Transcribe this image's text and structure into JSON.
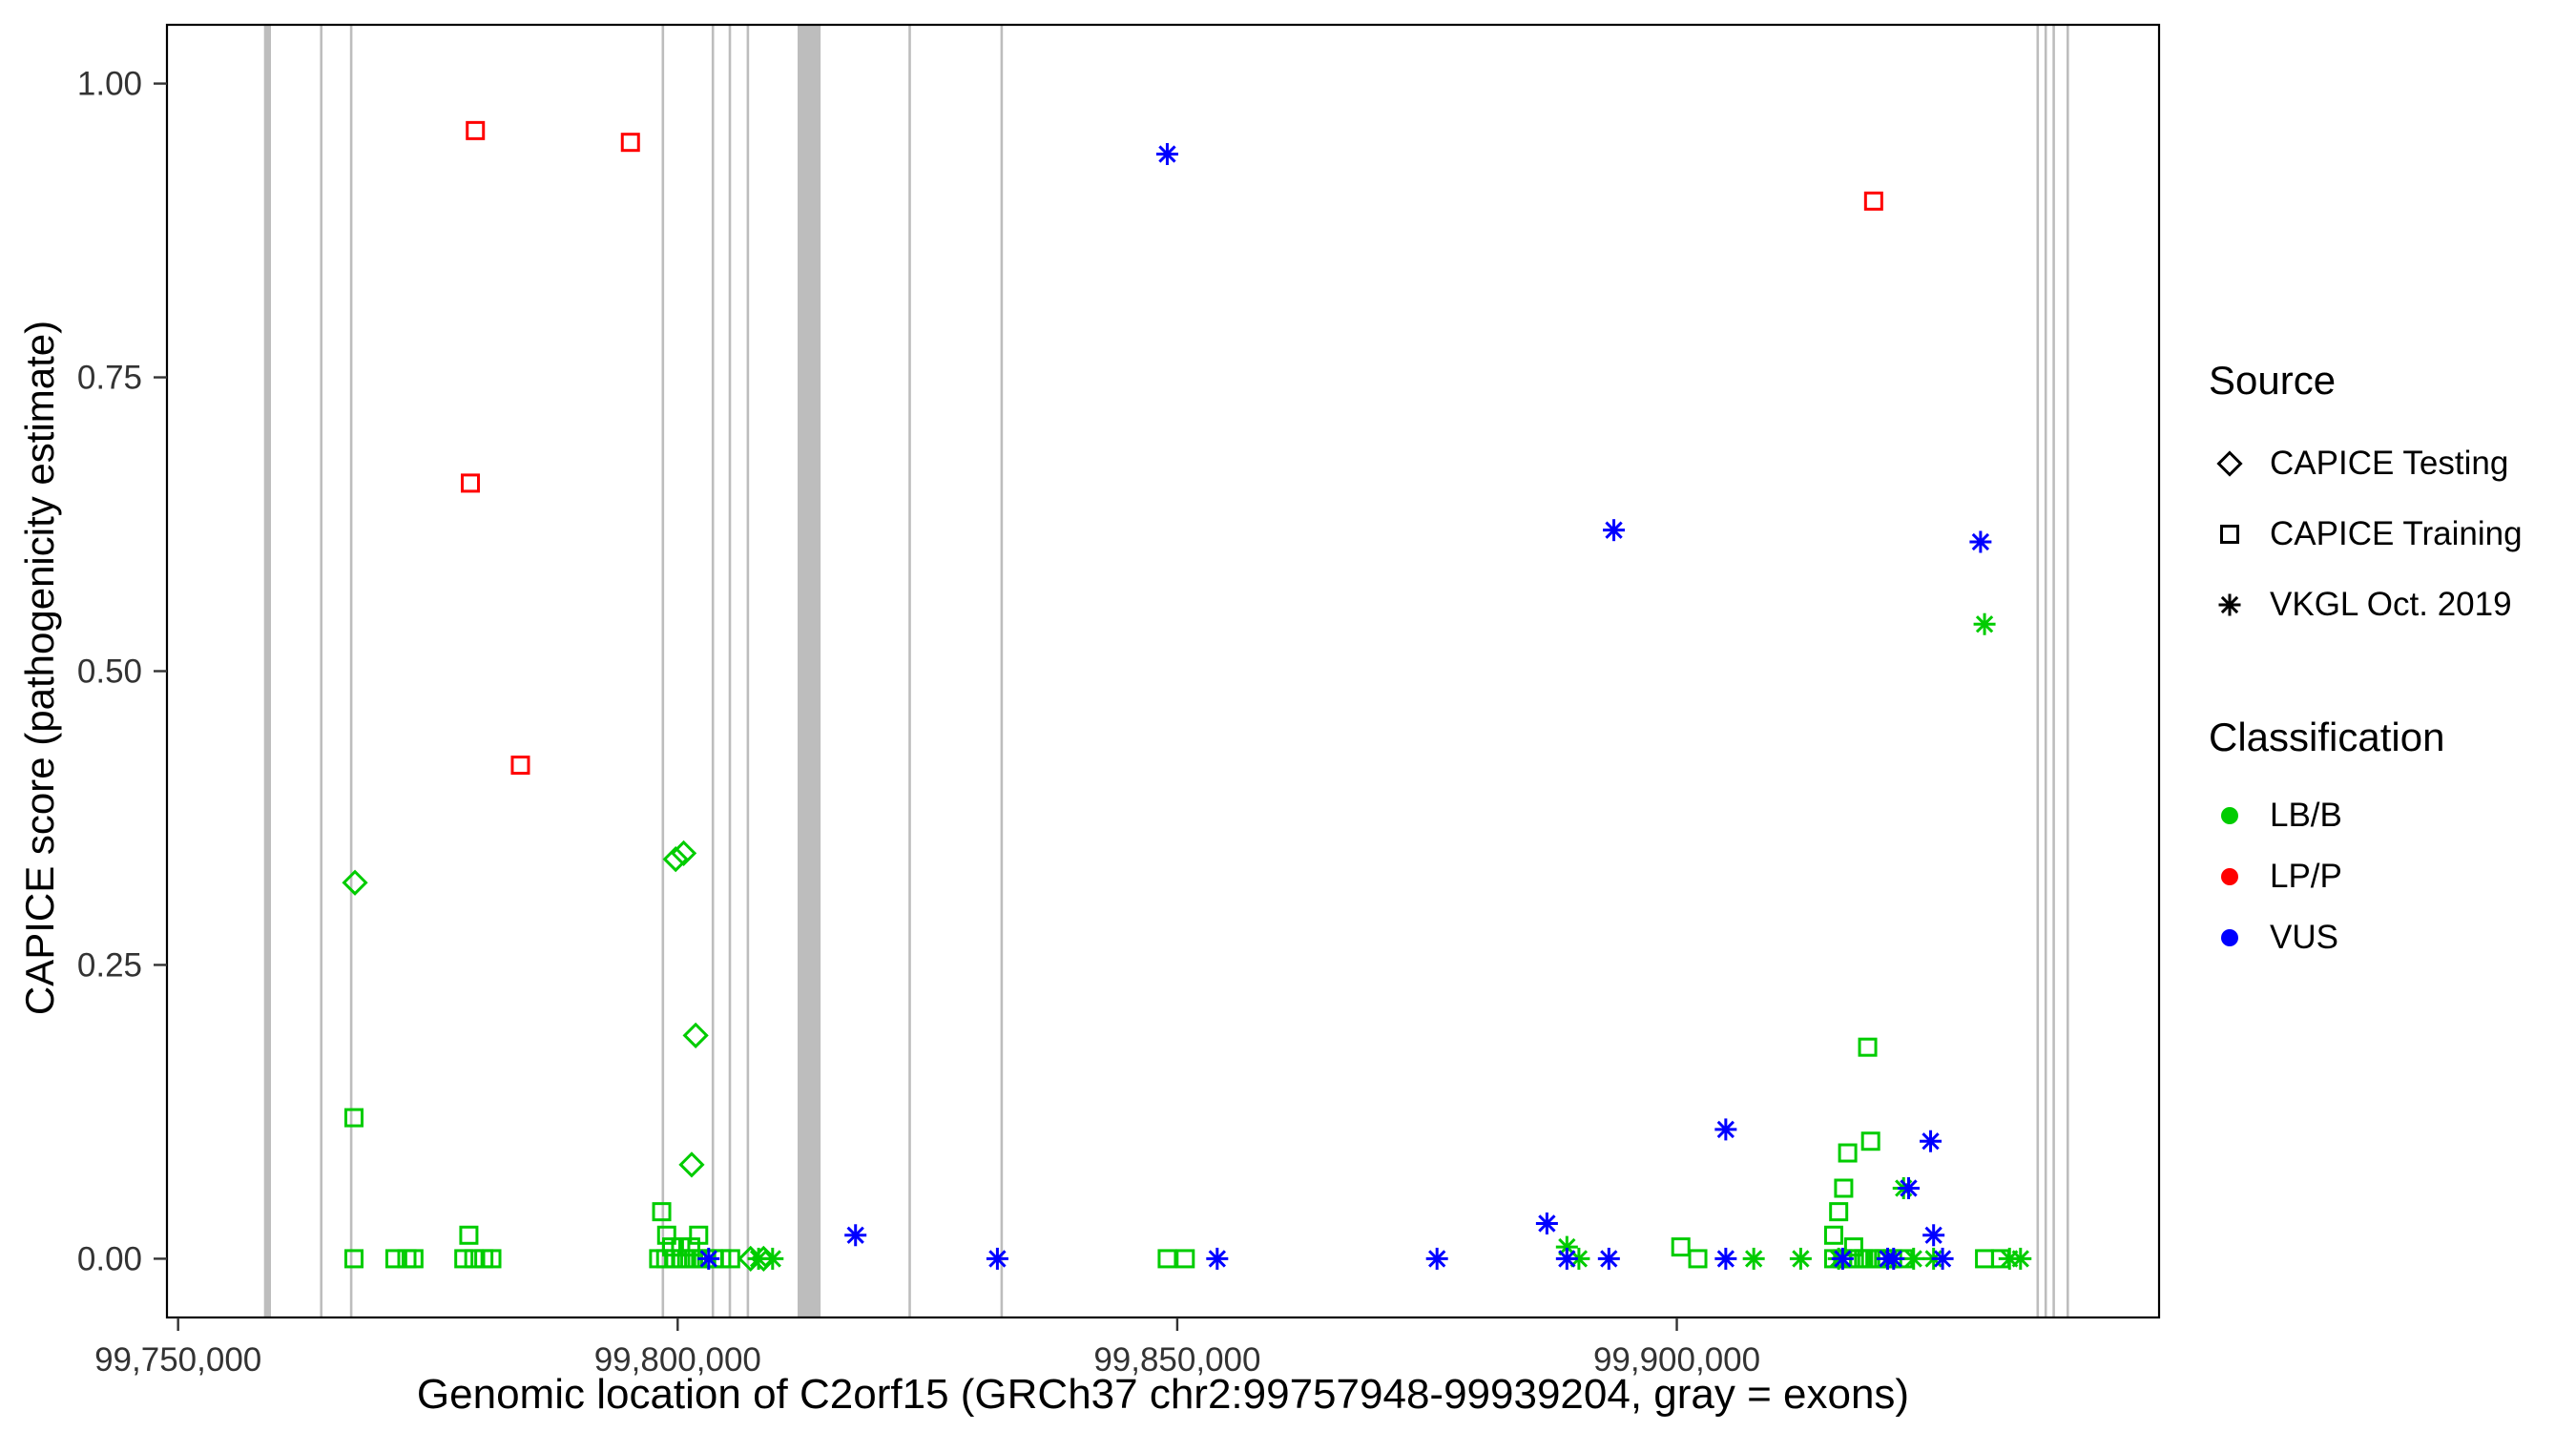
{
  "chart_data": {
    "type": "scatter",
    "title": "",
    "xlabel": "Genomic location of C2orf15 (GRCh37 chr2:99757948-99939204, gray = exons)",
    "ylabel": "CAPICE score (pathogenicity estimate)",
    "x_domain": [
      99748885,
      99948267
    ],
    "y_domain": [
      -0.05,
      1.05
    ],
    "x_ticks": {
      "values": [
        99750000,
        99800000,
        99850000,
        99900000
      ],
      "labels": [
        "99,750,000",
        "99,800,000",
        "99,850,000",
        "99,900,000"
      ]
    },
    "y_ticks": {
      "values": [
        0.0,
        0.25,
        0.5,
        0.75,
        1.0
      ],
      "labels": [
        "0.00",
        "0.25",
        "0.50",
        "0.75",
        "1.00"
      ]
    },
    "grid": false,
    "exon_color": "#bdbdbd",
    "exons": [
      [
        99758600,
        99759300
      ],
      [
        99764200,
        99764450
      ],
      [
        99767200,
        99767450
      ],
      [
        99798400,
        99798650
      ],
      [
        99803400,
        99803650
      ],
      [
        99805100,
        99805350
      ],
      [
        99806900,
        99807150
      ],
      [
        99812000,
        99814300
      ],
      [
        99823100,
        99823350
      ],
      [
        99832300,
        99832550
      ],
      [
        99936000,
        99936250
      ],
      [
        99936800,
        99937050
      ],
      [
        99937600,
        99937850
      ],
      [
        99939000,
        99939204
      ]
    ],
    "colors": {
      "LB/B": "#00cc00",
      "LP/P": "#ff0000",
      "VUS": "#0000ff"
    },
    "markers": {
      "CAPICE Testing": "diamond",
      "CAPICE Training": "square",
      "VKGL Oct. 2019": "asterisk"
    },
    "series": [
      {
        "name": "CAPICE Testing / LB/B",
        "source": "CAPICE Testing",
        "classification": "LB/B",
        "points": [
          [
            99767700,
            0.32
          ],
          [
            99799800,
            0.34
          ],
          [
            99800600,
            0.345
          ],
          [
            99801800,
            0.19
          ],
          [
            99801400,
            0.08
          ],
          [
            99807300,
            0.0
          ],
          [
            99808600,
            0.0
          ]
        ]
      },
      {
        "name": "CAPICE Training / LB/B",
        "source": "CAPICE Training",
        "classification": "LB/B",
        "points": [
          [
            99767600,
            0.12
          ],
          [
            99767600,
            0.0
          ],
          [
            99771700,
            0.0
          ],
          [
            99772900,
            0.0
          ],
          [
            99773600,
            0.0
          ],
          [
            99779100,
            0.02
          ],
          [
            99778600,
            0.0
          ],
          [
            99779600,
            0.0
          ],
          [
            99780600,
            0.0
          ],
          [
            99781400,
            0.0
          ],
          [
            99798400,
            0.04
          ],
          [
            99798900,
            0.02
          ],
          [
            99799400,
            0.01
          ],
          [
            99798100,
            0.0
          ],
          [
            99798800,
            0.0
          ],
          [
            99799600,
            0.0
          ],
          [
            99800300,
            0.01
          ],
          [
            99800300,
            0.0
          ],
          [
            99800900,
            0.0
          ],
          [
            99801300,
            0.01
          ],
          [
            99801600,
            0.0
          ],
          [
            99802100,
            0.02
          ],
          [
            99802300,
            0.0
          ],
          [
            99802900,
            0.0
          ],
          [
            99803600,
            0.0
          ],
          [
            99804400,
            0.0
          ],
          [
            99805300,
            0.0
          ],
          [
            99849000,
            0.0
          ],
          [
            99850800,
            0.0
          ],
          [
            99900400,
            0.01
          ],
          [
            99902100,
            0.0
          ],
          [
            99915700,
            0.02
          ],
          [
            99916200,
            0.04
          ],
          [
            99916700,
            0.06
          ],
          [
            99917100,
            0.09
          ],
          [
            99919100,
            0.18
          ],
          [
            99919400,
            0.1
          ],
          [
            99915700,
            0.0
          ],
          [
            99916600,
            0.0
          ],
          [
            99917400,
            0.0
          ],
          [
            99917700,
            0.01
          ],
          [
            99918200,
            0.0
          ],
          [
            99918700,
            0.0
          ],
          [
            99919400,
            0.0
          ],
          [
            99920100,
            0.0
          ],
          [
            99920700,
            0.0
          ],
          [
            99921600,
            0.0
          ],
          [
            99922700,
            0.0
          ],
          [
            99930800,
            0.0
          ],
          [
            99932400,
            0.0
          ]
        ]
      },
      {
        "name": "CAPICE Training / LP/P",
        "source": "CAPICE Training",
        "classification": "LP/P",
        "points": [
          [
            99779750,
            0.96
          ],
          [
            99779250,
            0.66
          ],
          [
            99784260,
            0.42
          ],
          [
            99795270,
            0.95
          ],
          [
            99919700,
            0.9
          ]
        ]
      },
      {
        "name": "VKGL Oct. 2019 / LB/B",
        "source": "VKGL Oct. 2019",
        "classification": "LB/B",
        "points": [
          [
            99808100,
            0.0
          ],
          [
            99809500,
            0.0
          ],
          [
            99889000,
            0.01
          ],
          [
            99890200,
            0.0
          ],
          [
            99907700,
            0.0
          ],
          [
            99912400,
            0.0
          ],
          [
            99916200,
            0.0
          ],
          [
            99922700,
            0.06
          ],
          [
            99923700,
            0.0
          ],
          [
            99925700,
            0.0
          ],
          [
            99930800,
            0.54
          ],
          [
            99933300,
            0.0
          ],
          [
            99934400,
            0.0
          ]
        ]
      },
      {
        "name": "VKGL Oct. 2019 / VUS",
        "source": "VKGL Oct. 2019",
        "classification": "VUS",
        "points": [
          [
            99849000,
            0.94
          ],
          [
            99893700,
            0.62
          ],
          [
            99930400,
            0.61
          ],
          [
            99904900,
            0.11
          ],
          [
            99925400,
            0.1
          ],
          [
            99923200,
            0.06
          ],
          [
            99887000,
            0.03
          ],
          [
            99817800,
            0.02
          ],
          [
            99803100,
            0.0
          ],
          [
            99832000,
            0.0
          ],
          [
            99854000,
            0.0
          ],
          [
            99876000,
            0.0
          ],
          [
            99889000,
            0.0
          ],
          [
            99893200,
            0.0
          ],
          [
            99904900,
            0.0
          ],
          [
            99916600,
            0.0
          ],
          [
            99921100,
            0.0
          ],
          [
            99921700,
            0.0
          ],
          [
            99925700,
            0.02
          ],
          [
            99926600,
            0.0
          ]
        ]
      }
    ]
  },
  "legend": {
    "source": {
      "title": "Source",
      "items": [
        {
          "label": "CAPICE Testing",
          "marker": "diamond"
        },
        {
          "label": "CAPICE Training",
          "marker": "square"
        },
        {
          "label": "VKGL Oct. 2019",
          "marker": "asterisk"
        }
      ]
    },
    "classification": {
      "title": "Classification",
      "items": [
        {
          "label": "LB/B",
          "color": "#00cc00"
        },
        {
          "label": "LP/P",
          "color": "#ff0000"
        },
        {
          "label": "VUS",
          "color": "#0000ff"
        }
      ]
    }
  },
  "axis": {
    "tick_label_color": "#333333",
    "border_color": "#000000"
  }
}
